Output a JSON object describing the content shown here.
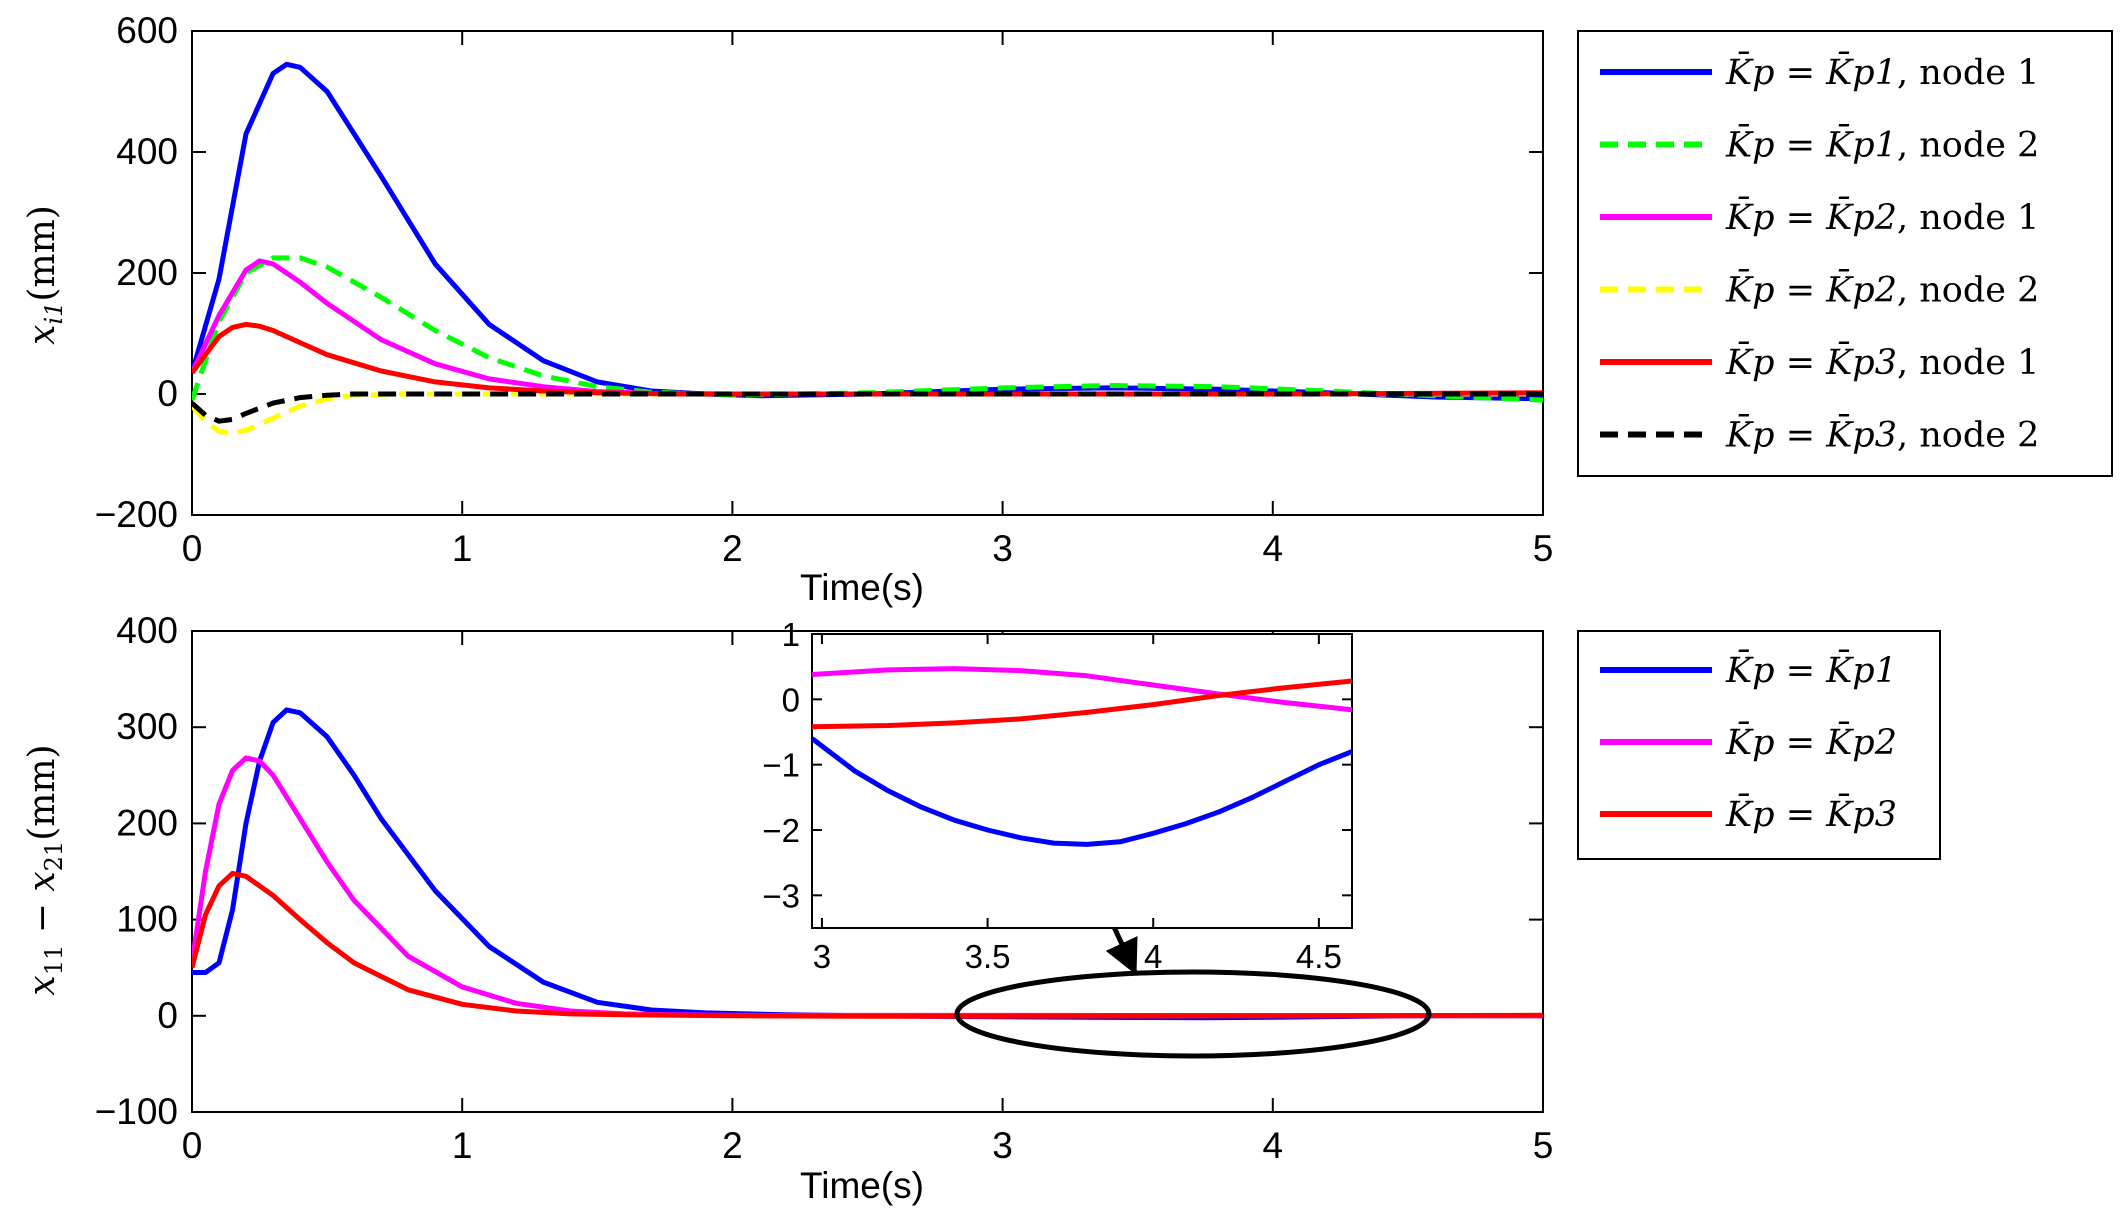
{
  "chart_data": [
    {
      "type": "line",
      "xlabel": "Time(s)",
      "ylabel": "x_i1(mm)",
      "xlim": [
        0,
        5
      ],
      "ylim": [
        -200,
        600
      ],
      "xticks": [
        "0",
        "1",
        "2",
        "3",
        "4",
        "5"
      ],
      "yticks": [
        "600",
        "400",
        "200",
        "0",
        "−200"
      ],
      "legend_position": "right",
      "series": [
        {
          "name": "K̄p = K̄p1, node 1",
          "color": "#0000ff",
          "dash": "solid",
          "x": [
            0,
            0.1,
            0.2,
            0.3,
            0.35,
            0.4,
            0.5,
            0.7,
            0.9,
            1.1,
            1.3,
            1.5,
            1.7,
            1.9,
            2.1,
            2.5,
            3.0,
            3.4,
            3.8,
            4.2,
            4.6,
            5.0
          ],
          "y": [
            35,
            190,
            430,
            530,
            545,
            540,
            500,
            360,
            215,
            115,
            55,
            20,
            5,
            0,
            -3,
            0,
            8,
            10,
            8,
            2,
            -5,
            -8
          ]
        },
        {
          "name": "K̄p = K̄p1, node 2",
          "color": "#00ff00",
          "dash": "dashed",
          "x": [
            0,
            0.1,
            0.2,
            0.3,
            0.4,
            0.5,
            0.7,
            0.9,
            1.1,
            1.3,
            1.5,
            1.7,
            2.0,
            2.5,
            3.0,
            3.4,
            3.8,
            4.2,
            4.6,
            5.0
          ],
          "y": [
            -10,
            120,
            200,
            225,
            225,
            210,
            160,
            105,
            60,
            30,
            12,
            3,
            -2,
            2,
            10,
            14,
            12,
            5,
            -3,
            -10
          ]
        },
        {
          "name": "K̄p = K̄p2, node 1",
          "color": "#ff00ff",
          "dash": "solid",
          "x": [
            0,
            0.1,
            0.2,
            0.25,
            0.3,
            0.4,
            0.5,
            0.7,
            0.9,
            1.1,
            1.3,
            1.5,
            1.7,
            2.0,
            2.5,
            3.0,
            4.0,
            5.0
          ],
          "y": [
            35,
            130,
            205,
            220,
            215,
            185,
            150,
            90,
            50,
            25,
            12,
            4,
            1,
            0,
            0,
            0,
            0,
            0
          ]
        },
        {
          "name": "K̄p = K̄p2, node 2",
          "color": "#ffff00",
          "dash": "dashed",
          "x": [
            0,
            0.05,
            0.1,
            0.15,
            0.2,
            0.3,
            0.4,
            0.5,
            0.6,
            0.8,
            1.0,
            1.5,
            2.0,
            3.0,
            4.0,
            5.0
          ],
          "y": [
            -20,
            -45,
            -62,
            -65,
            -60,
            -40,
            -20,
            -8,
            -2,
            0,
            0,
            0,
            0,
            0,
            0,
            0
          ]
        },
        {
          "name": "K̄p = K̄p3, node 1",
          "color": "#ff0000",
          "dash": "solid",
          "x": [
            0,
            0.1,
            0.15,
            0.2,
            0.25,
            0.3,
            0.4,
            0.5,
            0.7,
            0.9,
            1.1,
            1.3,
            1.5,
            1.8,
            2.0,
            2.5,
            3.0,
            4.0,
            5.0
          ],
          "y": [
            35,
            95,
            110,
            115,
            112,
            105,
            85,
            65,
            38,
            20,
            10,
            5,
            2,
            0,
            0,
            0,
            0,
            0,
            2
          ]
        },
        {
          "name": "K̄p = K̄p3, node 2",
          "color": "#000000",
          "dash": "dashed",
          "x": [
            0,
            0.05,
            0.1,
            0.15,
            0.2,
            0.3,
            0.4,
            0.5,
            0.6,
            0.8,
            1.0,
            1.5,
            2.0,
            3.0,
            4.0,
            5.0
          ],
          "y": [
            -15,
            -35,
            -45,
            -42,
            -32,
            -15,
            -6,
            -2,
            0,
            0,
            0,
            0,
            0,
            0,
            0,
            0
          ]
        }
      ]
    },
    {
      "type": "line",
      "xlabel": "Time(s)",
      "ylabel": "x_11 − x_21(mm)",
      "xlim": [
        0,
        5
      ],
      "ylim": [
        -100,
        400
      ],
      "xticks": [
        "0",
        "1",
        "2",
        "3",
        "4",
        "5"
      ],
      "yticks": [
        "400",
        "300",
        "200",
        "100",
        "0",
        "−100"
      ],
      "legend_position": "right",
      "series": [
        {
          "name": "K̄p = K̄p1",
          "color": "#0000ff",
          "dash": "solid",
          "x": [
            0,
            0.05,
            0.1,
            0.15,
            0.2,
            0.25,
            0.3,
            0.35,
            0.4,
            0.5,
            0.6,
            0.7,
            0.9,
            1.1,
            1.3,
            1.5,
            1.7,
            1.9,
            2.2,
            2.5,
            3.0,
            3.5,
            3.75,
            4.0,
            4.5,
            5.0
          ],
          "y": [
            45,
            45,
            55,
            110,
            200,
            265,
            305,
            318,
            315,
            290,
            250,
            205,
            130,
            72,
            35,
            14,
            6,
            3,
            1,
            0,
            -1,
            -1.8,
            -2.1,
            -1.5,
            0,
            0
          ]
        },
        {
          "name": "K̄p = K̄p2",
          "color": "#ff00ff",
          "dash": "solid",
          "x": [
            0,
            0.05,
            0.1,
            0.15,
            0.2,
            0.25,
            0.3,
            0.4,
            0.5,
            0.6,
            0.8,
            1.0,
            1.2,
            1.4,
            1.6,
            1.8,
            2.0,
            2.5,
            3.0,
            4.0,
            5.0
          ],
          "y": [
            55,
            150,
            220,
            255,
            268,
            265,
            250,
            205,
            160,
            120,
            62,
            30,
            13,
            5,
            2,
            1,
            0.5,
            0.4,
            0.4,
            0.2,
            0
          ]
        },
        {
          "name": "K̄p = K̄p3",
          "color": "#ff0000",
          "dash": "solid",
          "x": [
            0,
            0.05,
            0.1,
            0.15,
            0.2,
            0.3,
            0.4,
            0.5,
            0.6,
            0.8,
            1.0,
            1.2,
            1.4,
            1.6,
            1.8,
            2.0,
            2.5,
            3.0,
            4.0,
            5.0
          ],
          "y": [
            50,
            105,
            135,
            148,
            145,
            125,
            100,
            76,
            55,
            27,
            12,
            5,
            2,
            1,
            0.5,
            0,
            -0.4,
            -0.4,
            0,
            0.5
          ]
        }
      ]
    },
    {
      "type": "line",
      "role": "inset zoom of lower plot",
      "xlim": [
        2.97,
        4.6
      ],
      "ylim": [
        -3.5,
        1
      ],
      "xticks": [
        "3",
        "3.5",
        "4",
        "4.5"
      ],
      "yticks": [
        "1",
        "0",
        "−1",
        "−2",
        "−3"
      ],
      "series": [
        {
          "name": "K̄p = K̄p1",
          "color": "#0000ff",
          "x": [
            2.97,
            3.1,
            3.2,
            3.3,
            3.4,
            3.5,
            3.6,
            3.7,
            3.8,
            3.9,
            4.0,
            4.1,
            4.2,
            4.3,
            4.4,
            4.5,
            4.6
          ],
          "y": [
            -0.6,
            -1.1,
            -1.4,
            -1.65,
            -1.85,
            -2.0,
            -2.12,
            -2.2,
            -2.22,
            -2.18,
            -2.05,
            -1.9,
            -1.72,
            -1.5,
            -1.25,
            -1.0,
            -0.8
          ]
        },
        {
          "name": "K̄p = K̄p2",
          "color": "#ff00ff",
          "x": [
            2.97,
            3.2,
            3.4,
            3.6,
            3.8,
            4.0,
            4.2,
            4.4,
            4.6
          ],
          "y": [
            0.38,
            0.45,
            0.47,
            0.44,
            0.36,
            0.22,
            0.08,
            -0.05,
            -0.16
          ]
        },
        {
          "name": "K̄p = K̄p3",
          "color": "#ff0000",
          "x": [
            2.97,
            3.2,
            3.4,
            3.6,
            3.8,
            4.0,
            4.2,
            4.4,
            4.6
          ],
          "y": [
            -0.42,
            -0.4,
            -0.36,
            -0.3,
            -0.2,
            -0.08,
            0.06,
            0.18,
            0.28
          ]
        }
      ]
    }
  ],
  "legends": {
    "top": [
      {
        "lhs": "K̄p",
        "rhs": "K̄p1",
        "suffix": ", node 1"
      },
      {
        "lhs": "K̄p",
        "rhs": "K̄p1",
        "suffix": ", node 2"
      },
      {
        "lhs": "K̄p",
        "rhs": "K̄p2",
        "suffix": ", node 1"
      },
      {
        "lhs": "K̄p",
        "rhs": "K̄p2",
        "suffix": ", node 2"
      },
      {
        "lhs": "K̄p",
        "rhs": "K̄p3",
        "suffix": ", node 1"
      },
      {
        "lhs": "K̄p",
        "rhs": "K̄p3",
        "suffix": ", node 2"
      }
    ],
    "bottom": [
      {
        "lhs": "K̄p",
        "rhs": "K̄p1",
        "suffix": ""
      },
      {
        "lhs": "K̄p",
        "rhs": "K̄p2",
        "suffix": ""
      },
      {
        "lhs": "K̄p",
        "rhs": "K̄p3",
        "suffix": ""
      }
    ]
  }
}
